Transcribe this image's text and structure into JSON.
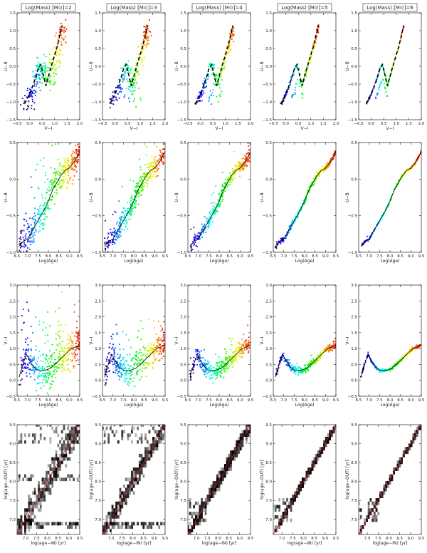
{
  "figure": {
    "row_count": 4,
    "column_count": 5
  },
  "columns": [
    {
      "title": "Log(Mass) [M⊙]=2",
      "mass_log": 2
    },
    {
      "title": "Log(Mass) [M⊙]=3",
      "mass_log": 3
    },
    {
      "title": "Log(Mass) [M⊙]=4",
      "mass_log": 4
    },
    {
      "title": "Log(Mass) [M⊙]=5",
      "mass_log": 5
    },
    {
      "title": "Log(Mass) [M⊙]=6",
      "mass_log": 6
    }
  ],
  "chart_data": [
    {
      "row": 1,
      "type": "scatter",
      "xlabel": "V−I",
      "ylabel": "U−B",
      "xlim": [
        -0.5,
        2.0
      ],
      "ylim": [
        -1.5,
        1.5
      ],
      "xticks": [
        "−0.5",
        "0.0",
        "0.5",
        "1.0",
        "1.5",
        "2.0"
      ],
      "yticks": [
        "−1.5",
        "−1.0",
        "−0.5",
        "0.0",
        "0.5",
        "1.0",
        "1.5"
      ],
      "color_encoding": "log(age), purple (young) to red (old)",
      "reference_track": "dashed black line",
      "track": {
        "x": [
          -0.2,
          -0.05,
          0.1,
          0.25,
          0.35,
          0.45,
          0.55,
          0.65,
          0.8,
          0.95,
          1.1,
          1.2,
          1.3
        ],
        "y": [
          -1.05,
          -0.85,
          -0.6,
          -0.3,
          -0.05,
          0.05,
          -0.25,
          -0.55,
          -0.15,
          0.2,
          0.55,
          0.85,
          1.15
        ]
      }
    },
    {
      "row": 2,
      "type": "scatter",
      "xlabel": "Log(Age)",
      "ylabel": "U−B",
      "xlim": [
        6.5,
        9.5
      ],
      "ylim": [
        -1.0,
        0.5
      ],
      "xticks": [
        "6.5",
        "7.0",
        "7.5",
        "8.0",
        "8.5",
        "9.0",
        "9.5"
      ],
      "yticks": [
        "−1.0",
        "−0.5",
        "0.0",
        "0.5"
      ],
      "mean_line": {
        "x": [
          6.6,
          6.8,
          7.0,
          7.2,
          7.4,
          7.6,
          7.8,
          8.0,
          8.2,
          8.4,
          8.6,
          8.8,
          9.0,
          9.2,
          9.4,
          9.5
        ],
        "y": [
          -0.92,
          -0.85,
          -0.82,
          -0.72,
          -0.62,
          -0.52,
          -0.42,
          -0.3,
          -0.15,
          -0.05,
          0.05,
          0.12,
          0.15,
          0.22,
          0.32,
          0.38
        ]
      }
    },
    {
      "row": 3,
      "type": "scatter",
      "xlabel": "Log(Age)",
      "ylabel": "V−I",
      "xlim": [
        6.5,
        9.5
      ],
      "ylim": [
        -0.5,
        3.0
      ],
      "xticks": [
        "6.5",
        "7.0",
        "7.5",
        "8.0",
        "8.5",
        "9.0",
        "9.5"
      ],
      "yticks": [
        "−0.5",
        "0.0",
        "0.5",
        "1.0",
        "1.5",
        "2.0",
        "2.5",
        "3.0"
      ],
      "mean_line": {
        "x": [
          6.6,
          6.8,
          6.95,
          7.1,
          7.3,
          7.5,
          7.7,
          7.9,
          8.1,
          8.3,
          8.5,
          8.7,
          8.9,
          9.1,
          9.3,
          9.5
        ],
        "y": [
          0.1,
          0.55,
          0.82,
          0.62,
          0.42,
          0.32,
          0.3,
          0.33,
          0.38,
          0.5,
          0.62,
          0.75,
          0.88,
          1.0,
          1.05,
          1.12
        ]
      }
    },
    {
      "row": 4,
      "type": "heatmap",
      "xlabel": "log(age−IN) [yr]",
      "ylabel": "log(age−OUT) [yr]",
      "xlim": [
        6.6,
        9.5
      ],
      "ylim": [
        6.6,
        9.5
      ],
      "xticks": [
        "7.0",
        "7.5",
        "8.0",
        "8.5",
        "9.0",
        "9.5"
      ],
      "yticks": [
        "7.0",
        "7.5",
        "8.0",
        "8.5",
        "9.0",
        "9.5"
      ],
      "reference_line": {
        "x": [
          6.6,
          9.5
        ],
        "y": [
          6.6,
          9.5
        ],
        "color": "#e02020"
      }
    }
  ]
}
